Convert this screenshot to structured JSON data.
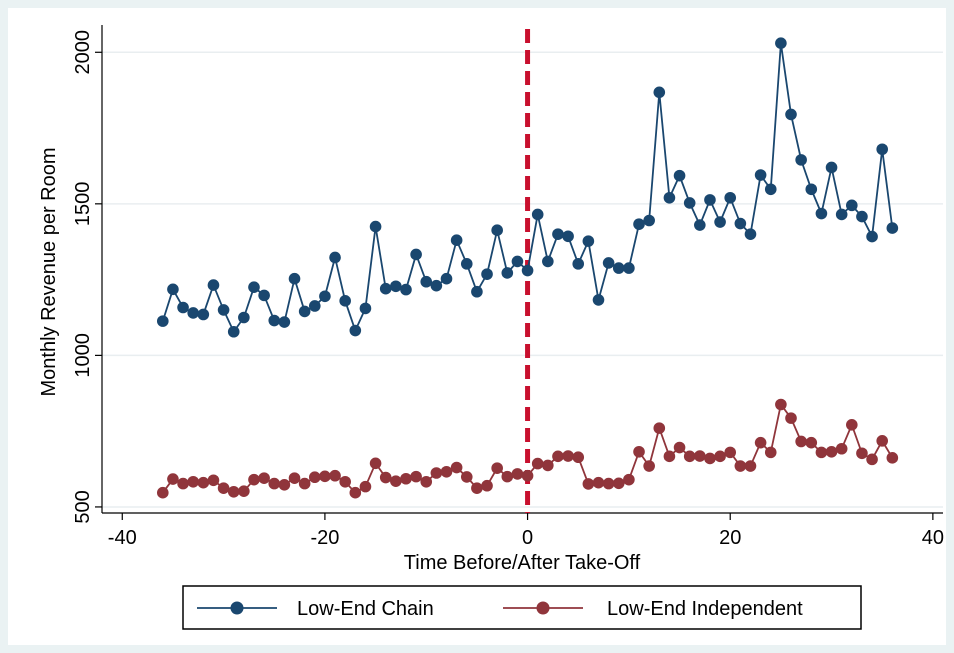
{
  "chart_data": {
    "type": "line",
    "xlabel": "Time Before/After Take-Off",
    "ylabel": "Monthly Revenue per Room",
    "xlim": [
      -42,
      41
    ],
    "ylim": [
      480,
      2090
    ],
    "x_ticks": [
      -40,
      -20,
      0,
      20,
      40
    ],
    "x_tick_labels": [
      "-40",
      "-20",
      "0",
      "20",
      "40"
    ],
    "y_ticks": [
      500,
      1000,
      1500,
      2000
    ],
    "y_tick_labels": [
      "500",
      "1000",
      "1500",
      "2000"
    ],
    "grid": true,
    "legend_position": "bottom",
    "reference_line": {
      "x": 0,
      "style": "dashed",
      "color": "#c8102e"
    },
    "x": [
      -36,
      -35,
      -34,
      -33,
      -32,
      -31,
      -30,
      -29,
      -28,
      -27,
      -26,
      -25,
      -24,
      -23,
      -22,
      -21,
      -20,
      -19,
      -18,
      -17,
      -16,
      -15,
      -14,
      -13,
      -12,
      -11,
      -10,
      -9,
      -8,
      -7,
      -6,
      -5,
      -4,
      -3,
      -2,
      -1,
      0,
      1,
      2,
      3,
      4,
      5,
      6,
      7,
      8,
      9,
      10,
      11,
      12,
      13,
      14,
      15,
      16,
      17,
      18,
      19,
      20,
      21,
      22,
      23,
      24,
      25,
      26,
      27,
      28,
      29,
      30,
      31,
      32,
      33,
      34,
      35,
      36
    ],
    "series": [
      {
        "name": "Low-End Chain",
        "color": "#1a476f",
        "values": [
          1113,
          1218,
          1158,
          1140,
          1135,
          1232,
          1150,
          1078,
          1125,
          1225,
          1198,
          1115,
          1110,
          1253,
          1145,
          1163,
          1195,
          1323,
          1180,
          1082,
          1155,
          1425,
          1220,
          1228,
          1217,
          1333,
          1243,
          1230,
          1253,
          1380,
          1302,
          1210,
          1268,
          1413,
          1272,
          1310,
          1280,
          1465,
          1310,
          1400,
          1393,
          1302,
          1377,
          1183,
          1305,
          1288,
          1288,
          1433,
          1445,
          1868,
          1520,
          1593,
          1503,
          1430,
          1513,
          1440,
          1520,
          1435,
          1400,
          1595,
          1548,
          2030,
          1795,
          1645,
          1548,
          1468,
          1620,
          1465,
          1495,
          1458,
          1392,
          1680,
          1420
        ]
      },
      {
        "name": "Low-End Independent",
        "color": "#90353b",
        "values": [
          547,
          592,
          577,
          583,
          580,
          588,
          562,
          550,
          552,
          590,
          595,
          577,
          573,
          595,
          577,
          598,
          601,
          603,
          583,
          547,
          567,
          644,
          597,
          585,
          593,
          600,
          583,
          612,
          616,
          630,
          599,
          562,
          570,
          628,
          600,
          609,
          603,
          643,
          637,
          667,
          668,
          664,
          576,
          580,
          577,
          578,
          590,
          682,
          635,
          760,
          667,
          696,
          667,
          668,
          660,
          667,
          680,
          635,
          635,
          712,
          680,
          838,
          793,
          716,
          712,
          680,
          682,
          692,
          771,
          677,
          657,
          718,
          662
        ]
      }
    ]
  }
}
